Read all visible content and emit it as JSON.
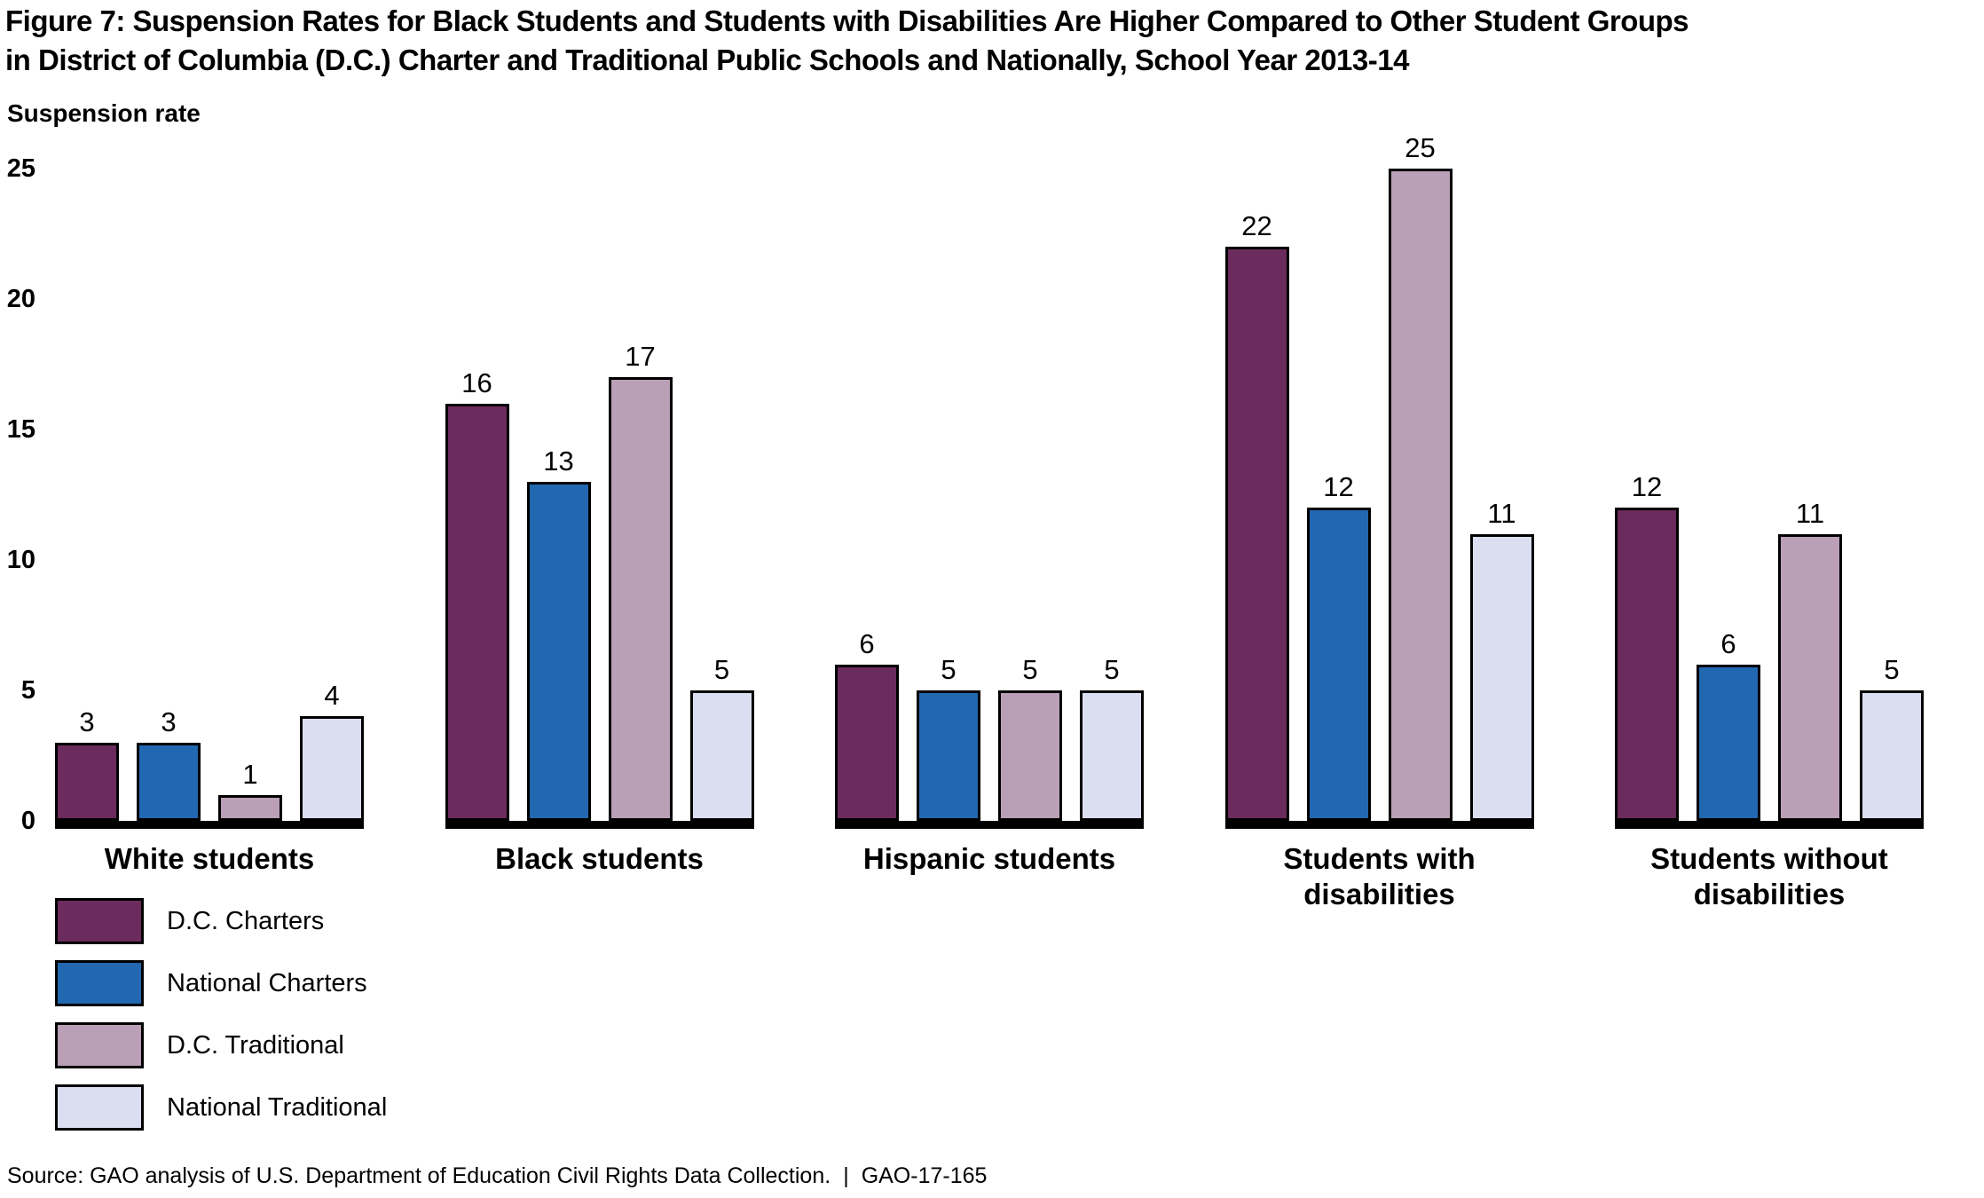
{
  "header": {
    "title_line1": "Figure 7: Suspension Rates for Black Students and Students with Disabilities Are Higher Compared to Other Student Groups",
    "title_line2": "in District of Columbia (D.C.) Charter and Traditional Public Schools and Nationally, School Year 2013-14"
  },
  "chart_data": {
    "type": "bar",
    "title": "Figure 7: Suspension Rates for Black Students and Students with Disabilities Are Higher Compared to Other Student Groups in District of Columbia (D.C.) Charter and Traditional Public Schools and Nationally, School Year 2013-14",
    "ylabel": "Suspension rate",
    "xlabel": "",
    "ylim": [
      0,
      25
    ],
    "yticks": [
      0,
      5,
      10,
      15,
      20,
      25
    ],
    "grid": false,
    "legend_position": "bottom-left",
    "data_labels": true,
    "categories": [
      "White students",
      "Black students",
      "Hispanic students",
      "Students with\ndisabilities",
      "Students without\ndisabilities"
    ],
    "series": [
      {
        "name": "D.C. Charters",
        "color": "#6B2B5C",
        "values": [
          3,
          16,
          6,
          22,
          12
        ]
      },
      {
        "name": "National Charters",
        "color": "#2268B1",
        "values": [
          3,
          13,
          5,
          12,
          6
        ]
      },
      {
        "name": "D.C. Traditional",
        "color": "#BA9FB6",
        "values": [
          1,
          17,
          5,
          25,
          11
        ]
      },
      {
        "name": "National Traditional",
        "color": "#DADEF0",
        "values": [
          4,
          5,
          5,
          11,
          5
        ]
      }
    ],
    "bar_outline_color": "#000000",
    "baseline_color": "#000000"
  },
  "source": {
    "text": "Source: GAO analysis of U.S. Department of Education Civil Rights Data Collection.",
    "separator": "|",
    "report_number": "GAO-17-165"
  }
}
